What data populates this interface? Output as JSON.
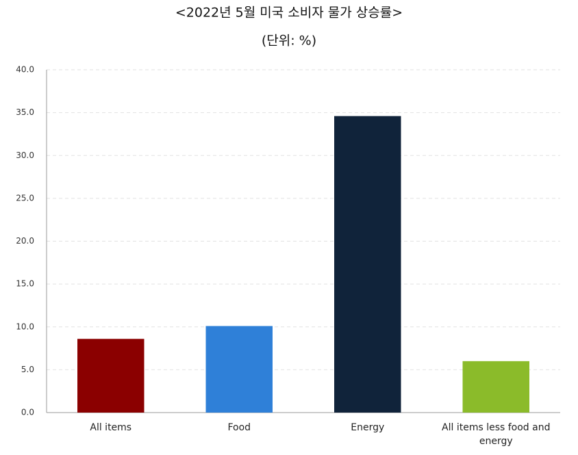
{
  "chart_data": {
    "type": "bar",
    "title": "<2022년 5월 미국 소비자 물가 상승률>",
    "subtitle": "(단위: %)",
    "categories": [
      "All items",
      "Food",
      "Energy",
      "All items less food and energy"
    ],
    "values": [
      8.6,
      10.1,
      34.6,
      6.0
    ],
    "colors": [
      "#8b0000",
      "#2f80d8",
      "#10233a",
      "#8bbb2a"
    ],
    "ylim": [
      0,
      40
    ],
    "yticks": [
      {
        "value": 0,
        "label": "0.0"
      },
      {
        "value": 5,
        "label": "5.0"
      },
      {
        "value": 10,
        "label": "10.0"
      },
      {
        "value": 15,
        "label": "15.0"
      },
      {
        "value": 20,
        "label": "20.0"
      },
      {
        "value": 25,
        "label": "25.0"
      },
      {
        "value": 30,
        "label": "30.0"
      },
      {
        "value": 35,
        "label": "35.0"
      },
      {
        "value": 40,
        "label": "40.0"
      }
    ],
    "grid": true
  }
}
